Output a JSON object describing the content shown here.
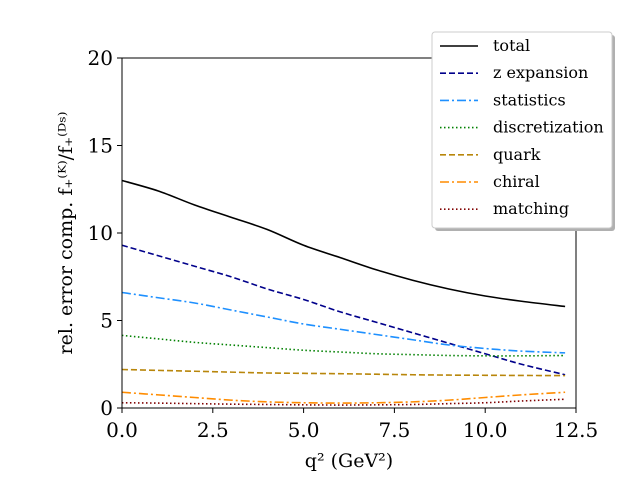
{
  "chart_data": {
    "type": "line",
    "title": "",
    "xlabel": "q² (GeV²)",
    "ylabel": "rel. error comp. f₊⁽ᴷ⁾/f₊⁽ᴰˢ⁾",
    "xlim": [
      0,
      12.5
    ],
    "ylim": [
      0,
      20
    ],
    "xticks": [
      0.0,
      2.5,
      5.0,
      7.5,
      10.0,
      12.5
    ],
    "xtick_labels": [
      "0.0",
      "2.5",
      "5.0",
      "7.5",
      "10.0",
      "12.5"
    ],
    "yticks": [
      0,
      5,
      10,
      15,
      20
    ],
    "ytick_labels": [
      "0",
      "5",
      "10",
      "15",
      "20"
    ],
    "grid": false,
    "legend_position": "top-right",
    "x": [
      0,
      1,
      2,
      3,
      4,
      5,
      6,
      7,
      8,
      9,
      10,
      11,
      12.2
    ],
    "series": [
      {
        "name": "total",
        "color": "#000000",
        "dash": "solid",
        "values": [
          13.0,
          12.4,
          11.6,
          10.9,
          10.2,
          9.3,
          8.6,
          7.9,
          7.3,
          6.8,
          6.4,
          6.1,
          5.8
        ]
      },
      {
        "name": "z expansion",
        "color": "#00008b",
        "dash": "dashed",
        "values": [
          9.3,
          8.7,
          8.1,
          7.5,
          6.8,
          6.2,
          5.5,
          4.9,
          4.3,
          3.7,
          3.1,
          2.5,
          1.9
        ]
      },
      {
        "name": "statistics",
        "color": "#1e90ff",
        "dash": "dashdot",
        "values": [
          6.6,
          6.3,
          6.0,
          5.6,
          5.2,
          4.8,
          4.5,
          4.2,
          3.9,
          3.6,
          3.4,
          3.25,
          3.15
        ]
      },
      {
        "name": "discretization",
        "color": "#008000",
        "dash": "dotted",
        "values": [
          4.15,
          3.95,
          3.75,
          3.6,
          3.45,
          3.3,
          3.2,
          3.1,
          3.05,
          3.0,
          2.98,
          2.98,
          3.0
        ]
      },
      {
        "name": "quark",
        "color": "#b8860b",
        "dash": "dashed",
        "values": [
          2.2,
          2.15,
          2.1,
          2.05,
          2.0,
          1.98,
          1.96,
          1.93,
          1.9,
          1.88,
          1.87,
          1.86,
          1.85
        ]
      },
      {
        "name": "chiral",
        "color": "#ff8c00",
        "dash": "dashdot",
        "values": [
          0.9,
          0.75,
          0.6,
          0.45,
          0.35,
          0.3,
          0.28,
          0.3,
          0.35,
          0.45,
          0.6,
          0.75,
          0.9
        ]
      },
      {
        "name": "matching",
        "color": "#800000",
        "dash": "dotted",
        "values": [
          0.3,
          0.28,
          0.25,
          0.22,
          0.2,
          0.18,
          0.17,
          0.18,
          0.2,
          0.25,
          0.3,
          0.4,
          0.5
        ]
      }
    ]
  }
}
